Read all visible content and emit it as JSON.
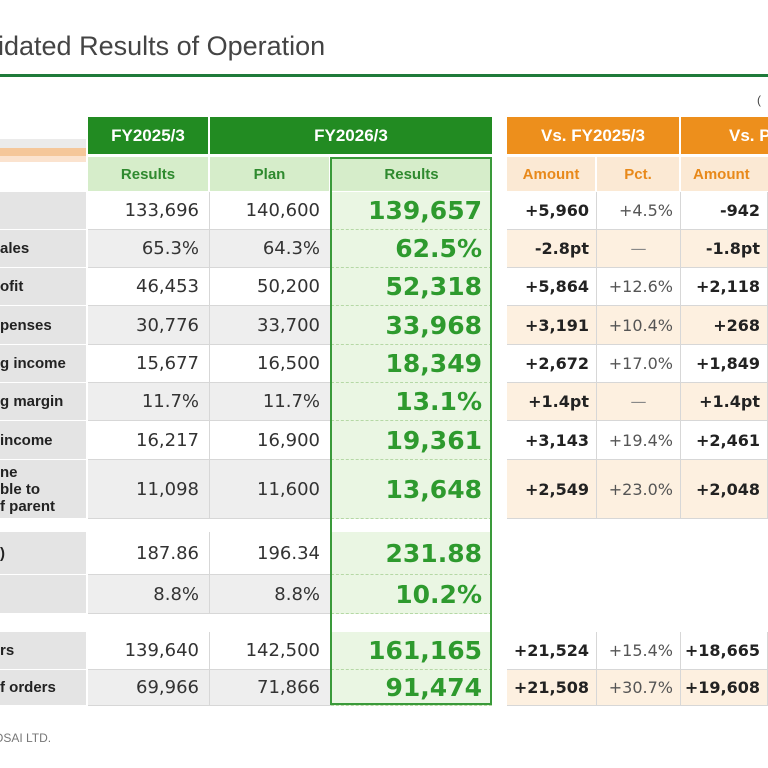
{
  "title": "lidated Results of Operation",
  "unit_note": "(",
  "footer": "OSAI LTD.",
  "headers": {
    "fy2025": "FY2025/3",
    "fy2026": "FY2026/3",
    "vs_fy2025": "Vs. FY2025/3",
    "vs_plan": "Vs. P"
  },
  "subheaders": {
    "results_2025": "Results",
    "plan": "Plan",
    "results_2026": "Results",
    "amount1": "Amount",
    "pct1": "Pct.",
    "amount2": "Amount"
  },
  "rows": [
    {
      "label": "",
      "fy2025": "133,696",
      "plan": "140,600",
      "fy2026": "139,657",
      "vs_amount": "+5,960",
      "vs_pct": "+4.5%",
      "vs_plan_amount": "-942"
    },
    {
      "label": "ales",
      "fy2025": "65.3%",
      "plan": "64.3%",
      "fy2026": "62.5%",
      "vs_amount": "-2.8pt",
      "vs_pct": "—",
      "vs_plan_amount": "-1.8pt"
    },
    {
      "label": "ofit",
      "fy2025": "46,453",
      "plan": "50,200",
      "fy2026": "52,318",
      "vs_amount": "+5,864",
      "vs_pct": "+12.6%",
      "vs_plan_amount": "+2,118"
    },
    {
      "label": "penses",
      "fy2025": "30,776",
      "plan": "33,700",
      "fy2026": "33,968",
      "vs_amount": "+3,191",
      "vs_pct": "+10.4%",
      "vs_plan_amount": "+268"
    },
    {
      "label": "g income",
      "fy2025": "15,677",
      "plan": "16,500",
      "fy2026": "18,349",
      "vs_amount": "+2,672",
      "vs_pct": "+17.0%",
      "vs_plan_amount": "+1,849"
    },
    {
      "label": "g margin",
      "fy2025": "11.7%",
      "plan": "11.7%",
      "fy2026": "13.1%",
      "vs_amount": "+1.4pt",
      "vs_pct": "—",
      "vs_plan_amount": "+1.4pt"
    },
    {
      "label": "income",
      "fy2025": "16,217",
      "plan": "16,900",
      "fy2026": "19,361",
      "vs_amount": "+3,143",
      "vs_pct": "+19.4%",
      "vs_plan_amount": "+2,461"
    },
    {
      "label_lines": [
        "ne",
        "ble to",
        "f parent"
      ],
      "fy2025": "11,098",
      "plan": "11,600",
      "fy2026": "13,648",
      "vs_amount": "+2,549",
      "vs_pct": "+23.0%",
      "vs_plan_amount": "+2,048"
    },
    {
      "label": ")",
      "fy2025": "187.86",
      "plan": "196.34",
      "fy2026": "231.88"
    },
    {
      "label": "",
      "fy2025": "8.8%",
      "plan": "8.8%",
      "fy2026": "10.2%"
    },
    {
      "label": "rs",
      "fy2025": "139,640",
      "plan": "142,500",
      "fy2026": "161,165",
      "vs_amount": "+21,524",
      "vs_pct": "+15.4%",
      "vs_plan_amount": "+18,665"
    },
    {
      "label": "f orders",
      "fy2025": "69,966",
      "plan": "71,866",
      "fy2026": "91,474",
      "vs_amount": "+21,508",
      "vs_pct": "+30.7%",
      "vs_plan_amount": "+19,608"
    }
  ]
}
